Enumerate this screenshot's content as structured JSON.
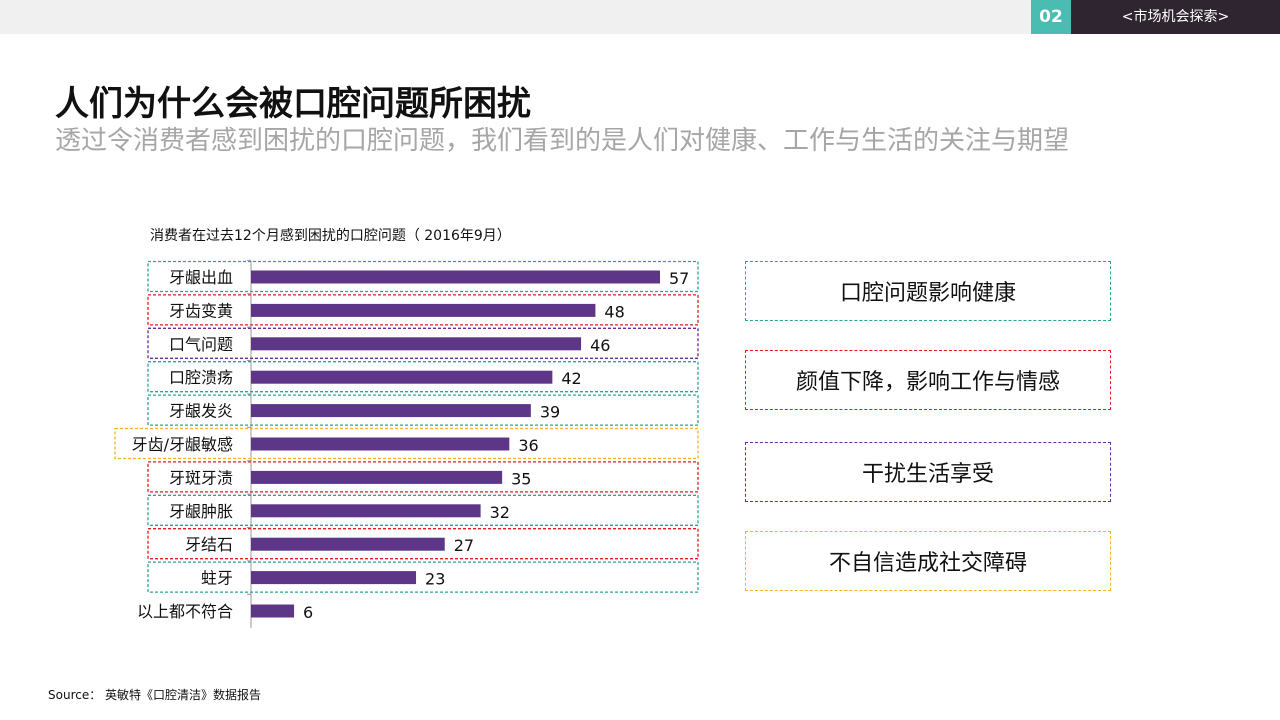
{
  "header": {
    "section_number": "02",
    "section_label": "<市场机会探索>"
  },
  "title": "人们为什么会被口腔问题所困扰",
  "subtitle": "透过令消费者感到困扰的口腔问题，我们看到的是人们对健康、工作与生活的关注与期望",
  "colors": {
    "bar": "#5d3688",
    "teal": "#2aa396",
    "red": "#e8191c",
    "purple": "#6a2aa0",
    "orange": "#f5b324"
  },
  "chart_data": {
    "type": "bar",
    "orientation": "horizontal",
    "title": "消费者在过去12个月感到困扰的口腔问题（  2016年9月）",
    "categories": [
      "牙龈出血",
      "牙齿变黄",
      "口气问题",
      "口腔溃疡",
      "牙龈发炎",
      "牙齿/牙龈敏感",
      "牙斑牙渍",
      "牙龈肿胀",
      "牙结石",
      "蛀牙",
      "以上都不符合"
    ],
    "values": [
      57,
      48,
      46,
      42,
      39,
      36,
      35,
      32,
      27,
      23,
      6
    ],
    "highlight": [
      "teal",
      "red",
      "purple",
      "teal",
      "teal",
      "orange",
      "red",
      "teal",
      "red",
      "teal",
      null
    ],
    "xlim": [
      0,
      57
    ],
    "grid": false,
    "data_labels": true
  },
  "themes": [
    {
      "label": "口腔问题影响健康",
      "color": "teal"
    },
    {
      "label": "颜值下降，影响工作与情感",
      "color": "red"
    },
    {
      "label": "干扰生活享受",
      "color": "purple"
    },
    {
      "label": "不自信造成社交障碍",
      "color": "orange"
    }
  ],
  "source": "Source： 英敏特《口腔清洁》数据报告"
}
